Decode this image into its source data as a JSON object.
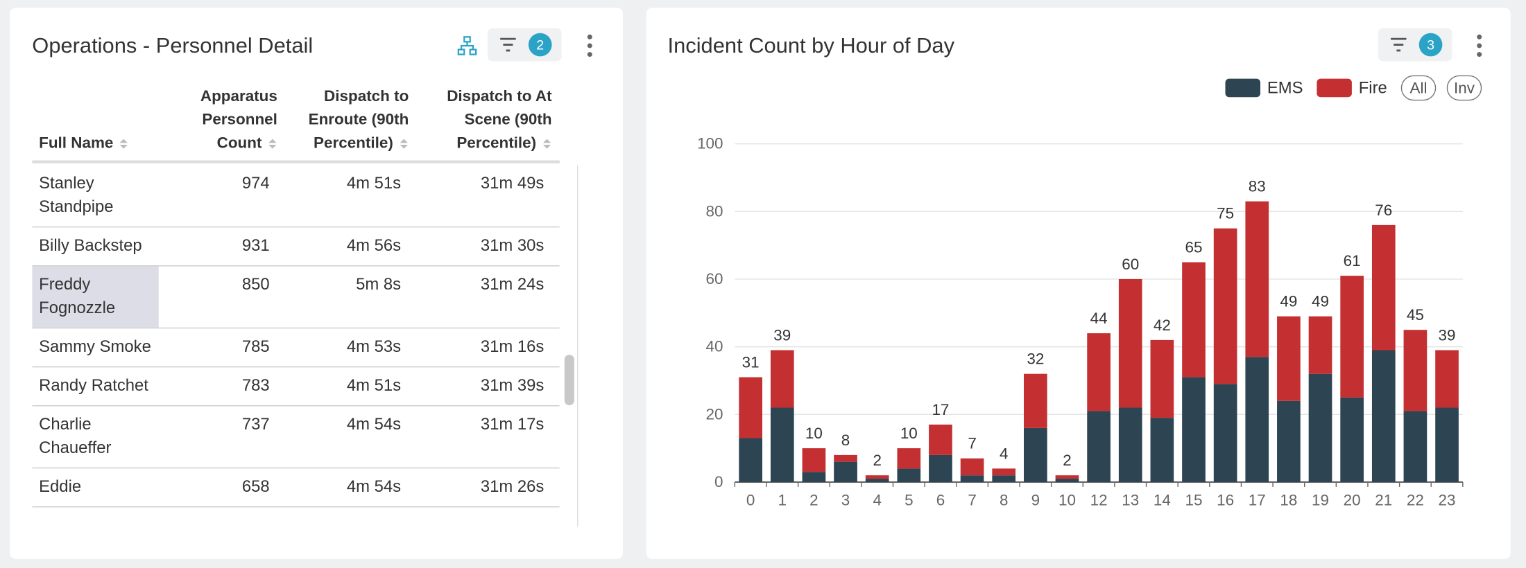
{
  "table_panel": {
    "title": "Operations - Personnel Detail",
    "filter_count": 2,
    "columns": [
      "Full Name",
      "Apparatus Personnel Count",
      "Dispatch to Enroute (90th Percentile)",
      "Dispatch to At Scene (90th Percentile)"
    ],
    "rows": [
      [
        "Stanley Standpipe",
        974,
        "4m 51s",
        "31m 49s"
      ],
      [
        "Billy Backstep",
        931,
        "4m 56s",
        "31m 30s"
      ],
      [
        "Freddy Fognozzle",
        850,
        "5m 8s",
        "31m 24s"
      ],
      [
        "Sammy Smoke",
        785,
        "4m 53s",
        "31m 16s"
      ],
      [
        "Randy Ratchet",
        783,
        "4m 51s",
        "31m 39s"
      ],
      [
        "Charlie Chaueffer",
        737,
        "4m 54s",
        "31m 17s"
      ],
      [
        "Eddie",
        658,
        "4m 54s",
        "31m 26s"
      ]
    ]
  },
  "chart_panel": {
    "filter_count": 3,
    "legend_buttons": [
      "All",
      "Inv"
    ]
  },
  "chart_data": {
    "type": "bar",
    "stacked": true,
    "title": "Incident Count by Hour of Day",
    "categories": [
      "0",
      "1",
      "2",
      "3",
      "4",
      "5",
      "6",
      "7",
      "8",
      "9",
      "10",
      "12",
      "13",
      "14",
      "15",
      "16",
      "17",
      "18",
      "19",
      "20",
      "21",
      "22",
      "23"
    ],
    "series": [
      {
        "name": "EMS",
        "color": "#2d4452",
        "values": [
          13,
          22,
          3,
          6,
          1,
          4,
          8,
          2,
          2,
          16,
          1,
          21,
          22,
          19,
          31,
          29,
          37,
          24,
          32,
          25,
          39,
          21,
          22
        ]
      },
      {
        "name": "Fire",
        "color": "#c43032",
        "values": [
          18,
          17,
          7,
          2,
          1,
          6,
          9,
          5,
          2,
          16,
          1,
          23,
          38,
          23,
          34,
          46,
          46,
          25,
          17,
          36,
          37,
          24,
          17
        ]
      }
    ],
    "totals": [
      31,
      39,
      10,
      8,
      2,
      10,
      17,
      7,
      4,
      32,
      2,
      44,
      60,
      42,
      65,
      75,
      83,
      49,
      49,
      61,
      76,
      45,
      39
    ],
    "ylim": [
      0,
      100
    ],
    "yticks": [
      0,
      20,
      40,
      60,
      80,
      100
    ],
    "grid": true,
    "legend": "top-right"
  }
}
